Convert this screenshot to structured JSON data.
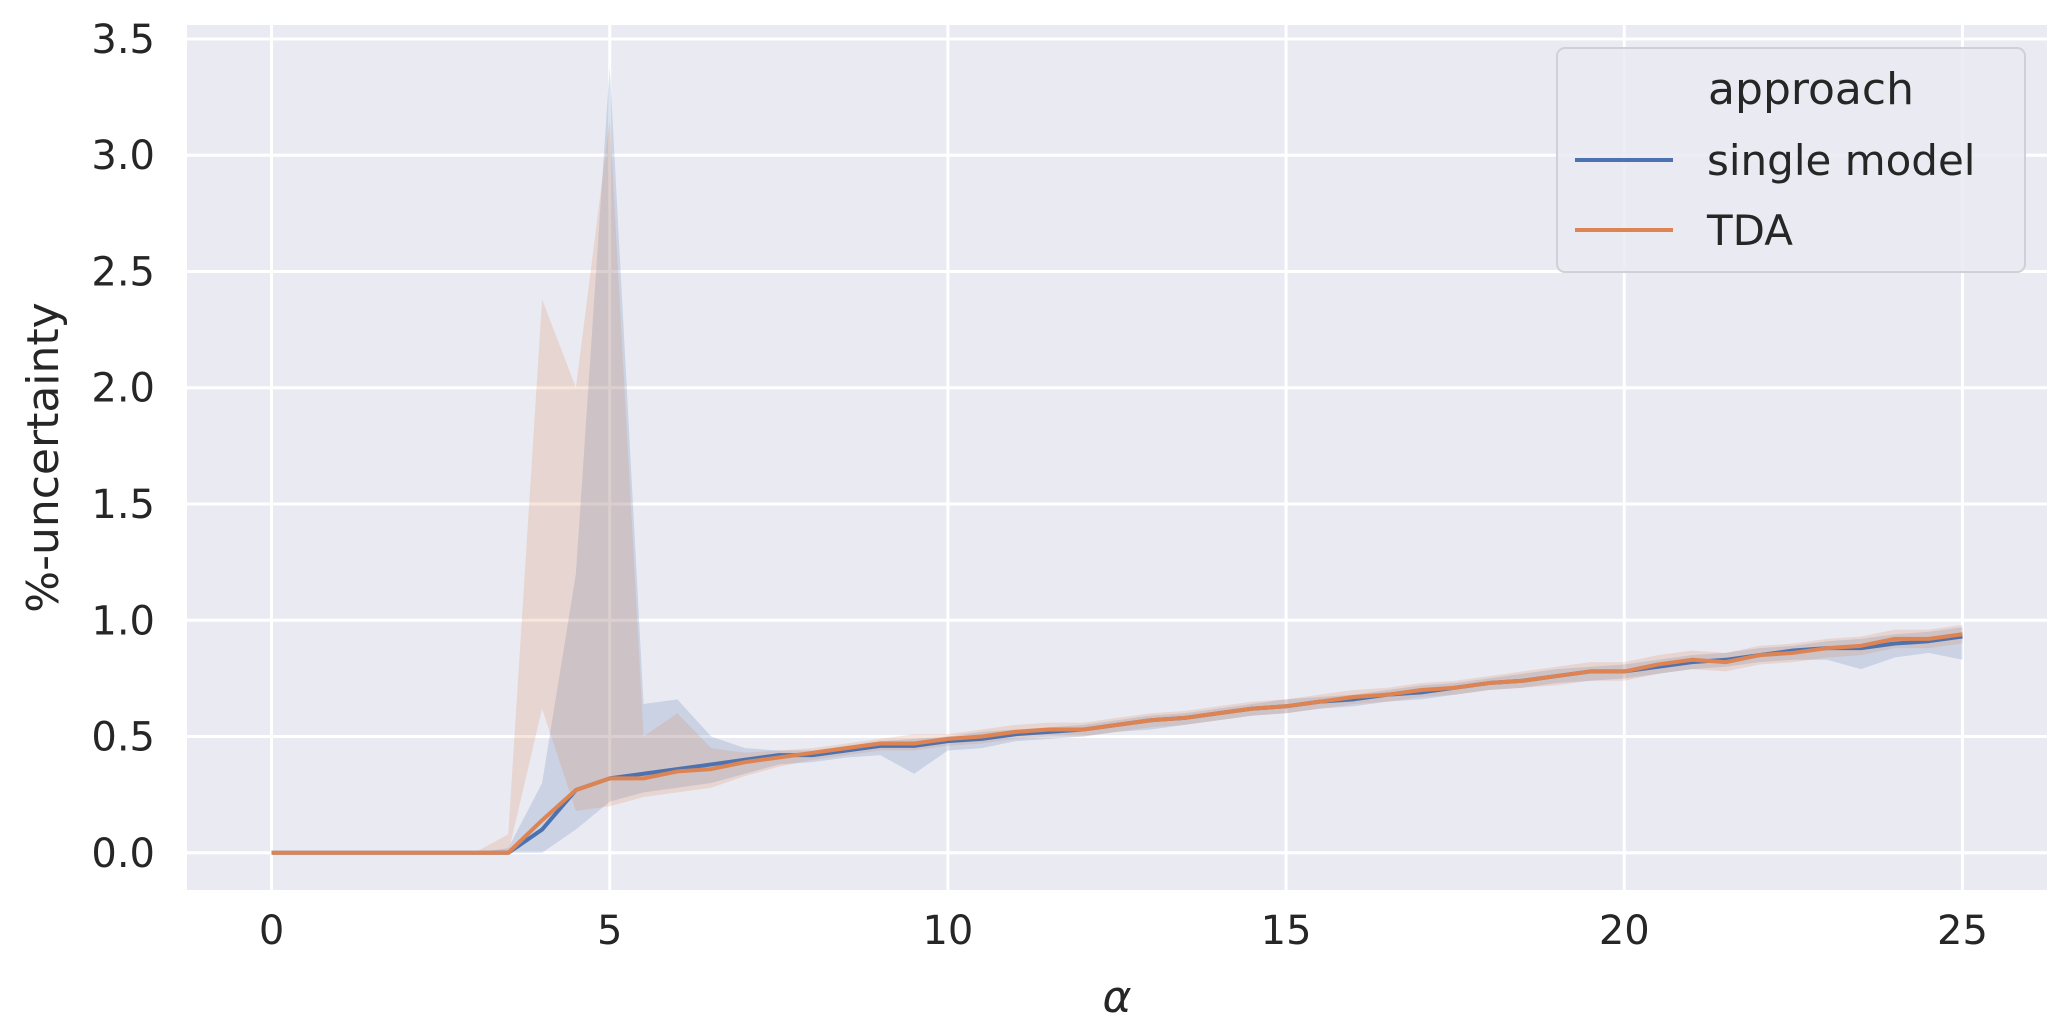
{
  "chart_data": {
    "type": "line",
    "title": "",
    "xlabel": "α",
    "ylabel": "%-uncertainty",
    "xlim": [
      -1.25,
      26.25
    ],
    "ylim": [
      -0.16,
      3.56
    ],
    "xticks": [
      0,
      5,
      10,
      15,
      20,
      25
    ],
    "xtick_labels": [
      "0",
      "5",
      "10",
      "15",
      "20",
      "25"
    ],
    "yticks": [
      0.0,
      0.5,
      1.0,
      1.5,
      2.0,
      2.5,
      3.0,
      3.5
    ],
    "ytick_labels": [
      "0.0",
      "0.5",
      "1.0",
      "1.5",
      "2.0",
      "2.5",
      "3.0",
      "3.5"
    ],
    "grid": true,
    "background": "#eaeaf2",
    "legend": {
      "title": "approach",
      "placement": "top-right",
      "entries": [
        "single model",
        "TDA"
      ]
    },
    "x": [
      0,
      0.5,
      1,
      1.5,
      2,
      2.5,
      3,
      3.5,
      4,
      4.5,
      5,
      5.5,
      6,
      6.5,
      7,
      7.5,
      8,
      8.5,
      9,
      9.5,
      10,
      10.5,
      11,
      11.5,
      12,
      12.5,
      13,
      13.5,
      14,
      14.5,
      15,
      15.5,
      16,
      16.5,
      17,
      17.5,
      18,
      18.5,
      19,
      19.5,
      20,
      20.5,
      21,
      21.5,
      22,
      22.5,
      23,
      23.5,
      24,
      24.5,
      25
    ],
    "series": [
      {
        "name": "single model",
        "color": "#4c72b0",
        "values": [
          0,
          0,
          0,
          0,
          0,
          0,
          0,
          0,
          0.1,
          0.27,
          0.32,
          0.34,
          0.36,
          0.38,
          0.4,
          0.42,
          0.42,
          0.44,
          0.46,
          0.46,
          0.48,
          0.49,
          0.51,
          0.52,
          0.53,
          0.55,
          0.57,
          0.58,
          0.6,
          0.62,
          0.63,
          0.65,
          0.66,
          0.68,
          0.69,
          0.71,
          0.73,
          0.74,
          0.76,
          0.78,
          0.78,
          0.8,
          0.82,
          0.83,
          0.85,
          0.87,
          0.88,
          0.88,
          0.9,
          0.91,
          0.93
        ],
        "upper": [
          0,
          0,
          0,
          0,
          0,
          0,
          0,
          0.02,
          0.3,
          1.2,
          3.38,
          0.64,
          0.66,
          0.5,
          0.45,
          0.44,
          0.44,
          0.46,
          0.48,
          0.49,
          0.5,
          0.52,
          0.53,
          0.54,
          0.55,
          0.57,
          0.59,
          0.6,
          0.62,
          0.64,
          0.66,
          0.67,
          0.68,
          0.7,
          0.72,
          0.73,
          0.75,
          0.77,
          0.79,
          0.8,
          0.81,
          0.83,
          0.85,
          0.86,
          0.88,
          0.89,
          0.91,
          0.92,
          0.94,
          0.95,
          0.97
        ],
        "lower": [
          0,
          0,
          0,
          0,
          0,
          0,
          0,
          0,
          0,
          0.1,
          0.22,
          0.26,
          0.28,
          0.3,
          0.34,
          0.38,
          0.39,
          0.41,
          0.42,
          0.34,
          0.44,
          0.45,
          0.48,
          0.49,
          0.5,
          0.52,
          0.53,
          0.55,
          0.57,
          0.59,
          0.6,
          0.62,
          0.63,
          0.65,
          0.66,
          0.68,
          0.7,
          0.71,
          0.73,
          0.74,
          0.75,
          0.77,
          0.79,
          0.8,
          0.82,
          0.83,
          0.83,
          0.79,
          0.84,
          0.86,
          0.83
        ]
      },
      {
        "name": "TDA",
        "color": "#dd8452",
        "values": [
          0,
          0,
          0,
          0,
          0,
          0,
          0,
          0,
          0.14,
          0.27,
          0.32,
          0.32,
          0.35,
          0.36,
          0.39,
          0.41,
          0.43,
          0.45,
          0.47,
          0.47,
          0.49,
          0.5,
          0.52,
          0.53,
          0.53,
          0.55,
          0.57,
          0.58,
          0.6,
          0.62,
          0.63,
          0.65,
          0.67,
          0.68,
          0.7,
          0.71,
          0.73,
          0.74,
          0.76,
          0.78,
          0.78,
          0.81,
          0.83,
          0.82,
          0.85,
          0.86,
          0.88,
          0.89,
          0.92,
          0.92,
          0.94
        ],
        "upper": [
          0,
          0,
          0,
          0,
          0,
          0,
          0,
          0.08,
          2.38,
          2.0,
          3.15,
          0.5,
          0.6,
          0.45,
          0.43,
          0.44,
          0.45,
          0.47,
          0.49,
          0.51,
          0.51,
          0.53,
          0.55,
          0.56,
          0.56,
          0.58,
          0.6,
          0.61,
          0.63,
          0.65,
          0.66,
          0.68,
          0.7,
          0.71,
          0.73,
          0.74,
          0.76,
          0.78,
          0.8,
          0.82,
          0.82,
          0.85,
          0.87,
          0.86,
          0.89,
          0.9,
          0.92,
          0.93,
          0.96,
          0.96,
          0.98
        ],
        "lower": [
          0,
          0,
          0,
          0,
          0,
          0,
          0,
          0,
          0.62,
          0.18,
          0.2,
          0.24,
          0.26,
          0.28,
          0.33,
          0.37,
          0.4,
          0.42,
          0.44,
          0.44,
          0.46,
          0.47,
          0.49,
          0.5,
          0.5,
          0.52,
          0.54,
          0.55,
          0.57,
          0.59,
          0.6,
          0.62,
          0.64,
          0.65,
          0.67,
          0.68,
          0.7,
          0.71,
          0.72,
          0.74,
          0.74,
          0.77,
          0.79,
          0.78,
          0.81,
          0.82,
          0.84,
          0.85,
          0.88,
          0.88,
          0.9
        ]
      }
    ]
  }
}
